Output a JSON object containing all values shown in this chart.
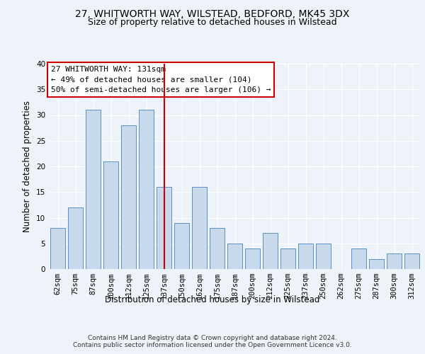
{
  "title1": "27, WHITWORTH WAY, WILSTEAD, BEDFORD, MK45 3DX",
  "title2": "Size of property relative to detached houses in Wilstead",
  "xlabel": "Distribution of detached houses by size in Wilstead",
  "ylabel": "Number of detached properties",
  "categories": [
    "62sqm",
    "75sqm",
    "87sqm",
    "100sqm",
    "112sqm",
    "125sqm",
    "137sqm",
    "150sqm",
    "162sqm",
    "175sqm",
    "187sqm",
    "200sqm",
    "212sqm",
    "225sqm",
    "237sqm",
    "250sqm",
    "262sqm",
    "275sqm",
    "287sqm",
    "300sqm",
    "312sqm"
  ],
  "values": [
    8,
    12,
    31,
    21,
    28,
    31,
    16,
    9,
    16,
    8,
    5,
    4,
    7,
    4,
    5,
    5,
    0,
    4,
    2,
    3,
    3
  ],
  "bar_color": "#c9d9ec",
  "bar_edgecolor": "#5a8fc3",
  "vline_x_index": 6,
  "vline_color": "#cc0000",
  "annotation_text": "27 WHITWORTH WAY: 131sqm\n← 49% of detached houses are smaller (104)\n50% of semi-detached houses are larger (106) →",
  "annotation_box_edgecolor": "#cc0000",
  "ylim": [
    0,
    40
  ],
  "yticks": [
    0,
    5,
    10,
    15,
    20,
    25,
    30,
    35,
    40
  ],
  "footnote": "Contains HM Land Registry data © Crown copyright and database right 2024.\nContains public sector information licensed under the Open Government Licence v3.0.",
  "background_color": "#eef2f9",
  "grid_color": "#ffffff",
  "title_fontsize": 10,
  "subtitle_fontsize": 9,
  "axis_label_fontsize": 8.5,
  "tick_fontsize": 7.5,
  "annotation_fontsize": 8,
  "footnote_fontsize": 6.5
}
